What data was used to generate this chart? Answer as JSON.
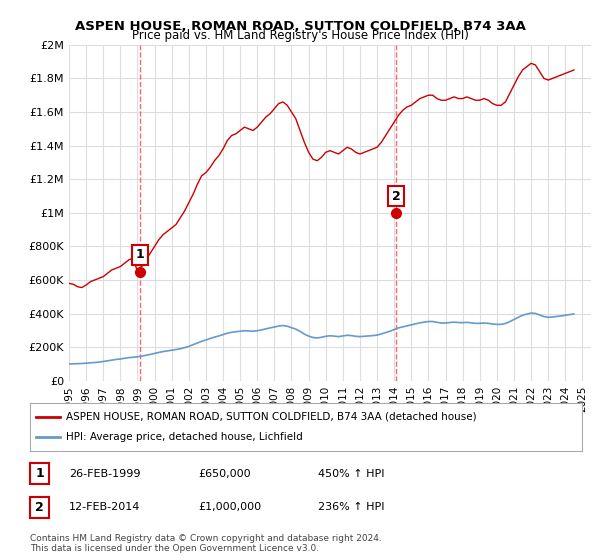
{
  "title": "ASPEN HOUSE, ROMAN ROAD, SUTTON COLDFIELD, B74 3AA",
  "subtitle": "Price paid vs. HM Land Registry's House Price Index (HPI)",
  "ylabel": "",
  "xlim_start": 1995.0,
  "xlim_end": 2025.5,
  "ylim_min": 0,
  "ylim_max": 2000000,
  "yticks": [
    0,
    200000,
    400000,
    600000,
    800000,
    1000000,
    1200000,
    1400000,
    1600000,
    1800000,
    2000000
  ],
  "ytick_labels": [
    "£0",
    "£200K",
    "£400K",
    "£600K",
    "£800K",
    "£1M",
    "£1.2M",
    "£1.4M",
    "£1.6M",
    "£1.8M",
    "£2M"
  ],
  "xticks": [
    1995,
    1996,
    1997,
    1998,
    1999,
    2000,
    2001,
    2002,
    2003,
    2004,
    2005,
    2006,
    2007,
    2008,
    2009,
    2010,
    2011,
    2012,
    2013,
    2014,
    2015,
    2016,
    2017,
    2018,
    2019,
    2020,
    2021,
    2022,
    2023,
    2024,
    2025
  ],
  "sale1_x": 1999.15,
  "sale1_y": 650000,
  "sale1_label": "1",
  "sale2_x": 2014.12,
  "sale2_y": 1000000,
  "sale2_label": "2",
  "vline1_x": 1999.15,
  "vline2_x": 2014.12,
  "house_color": "#cc0000",
  "hpi_color": "#6699cc",
  "vline_color": "#ff6666",
  "grid_color": "#dddddd",
  "bg_color": "#ffffff",
  "legend_box_color": "#000000",
  "legend_line1": "ASPEN HOUSE, ROMAN ROAD, SUTTON COLDFIELD, B74 3AA (detached house)",
  "legend_line2": "HPI: Average price, detached house, Lichfield",
  "table_row1": [
    "1",
    "26-FEB-1999",
    "£650,000",
    "450% ↑ HPI"
  ],
  "table_row2": [
    "2",
    "12-FEB-2014",
    "£1,000,000",
    "236% ↑ HPI"
  ],
  "footnote": "Contains HM Land Registry data © Crown copyright and database right 2024.\nThis data is licensed under the Open Government Licence v3.0.",
  "house_price_data": {
    "x": [
      1995.0,
      1995.25,
      1995.5,
      1995.75,
      1996.0,
      1996.25,
      1996.5,
      1996.75,
      1997.0,
      1997.25,
      1997.5,
      1997.75,
      1998.0,
      1998.25,
      1998.5,
      1998.75,
      1999.0,
      1999.25,
      1999.5,
      1999.75,
      2000.0,
      2000.25,
      2000.5,
      2000.75,
      2001.0,
      2001.25,
      2001.5,
      2001.75,
      2002.0,
      2002.25,
      2002.5,
      2002.75,
      2003.0,
      2003.25,
      2003.5,
      2003.75,
      2004.0,
      2004.25,
      2004.5,
      2004.75,
      2005.0,
      2005.25,
      2005.5,
      2005.75,
      2006.0,
      2006.25,
      2006.5,
      2006.75,
      2007.0,
      2007.25,
      2007.5,
      2007.75,
      2008.0,
      2008.25,
      2008.5,
      2008.75,
      2009.0,
      2009.25,
      2009.5,
      2009.75,
      2010.0,
      2010.25,
      2010.5,
      2010.75,
      2011.0,
      2011.25,
      2011.5,
      2011.75,
      2012.0,
      2012.25,
      2012.5,
      2012.75,
      2013.0,
      2013.25,
      2013.5,
      2013.75,
      2014.0,
      2014.25,
      2014.5,
      2014.75,
      2015.0,
      2015.25,
      2015.5,
      2015.75,
      2016.0,
      2016.25,
      2016.5,
      2016.75,
      2017.0,
      2017.25,
      2017.5,
      2017.75,
      2018.0,
      2018.25,
      2018.5,
      2018.75,
      2019.0,
      2019.25,
      2019.5,
      2019.75,
      2020.0,
      2020.25,
      2020.5,
      2020.75,
      2021.0,
      2021.25,
      2021.5,
      2021.75,
      2022.0,
      2022.25,
      2022.5,
      2022.75,
      2023.0,
      2023.25,
      2023.5,
      2023.75,
      2024.0,
      2024.25,
      2024.5
    ],
    "y": [
      580000,
      575000,
      560000,
      555000,
      570000,
      590000,
      600000,
      610000,
      620000,
      640000,
      660000,
      670000,
      680000,
      700000,
      720000,
      730000,
      650000,
      680000,
      720000,
      760000,
      800000,
      840000,
      870000,
      890000,
      910000,
      930000,
      970000,
      1010000,
      1060000,
      1110000,
      1170000,
      1220000,
      1240000,
      1270000,
      1310000,
      1340000,
      1380000,
      1430000,
      1460000,
      1470000,
      1490000,
      1510000,
      1500000,
      1490000,
      1510000,
      1540000,
      1570000,
      1590000,
      1620000,
      1650000,
      1660000,
      1640000,
      1600000,
      1560000,
      1490000,
      1420000,
      1360000,
      1320000,
      1310000,
      1330000,
      1360000,
      1370000,
      1360000,
      1350000,
      1370000,
      1390000,
      1380000,
      1360000,
      1350000,
      1360000,
      1370000,
      1380000,
      1390000,
      1420000,
      1460000,
      1500000,
      1540000,
      1580000,
      1610000,
      1630000,
      1640000,
      1660000,
      1680000,
      1690000,
      1700000,
      1700000,
      1680000,
      1670000,
      1670000,
      1680000,
      1690000,
      1680000,
      1680000,
      1690000,
      1680000,
      1670000,
      1670000,
      1680000,
      1670000,
      1650000,
      1640000,
      1640000,
      1660000,
      1710000,
      1760000,
      1810000,
      1850000,
      1870000,
      1890000,
      1880000,
      1840000,
      1800000,
      1790000,
      1800000,
      1810000,
      1820000,
      1830000,
      1840000,
      1850000
    ]
  },
  "hpi_data": {
    "x": [
      1995.0,
      1995.25,
      1995.5,
      1995.75,
      1996.0,
      1996.25,
      1996.5,
      1996.75,
      1997.0,
      1997.25,
      1997.5,
      1997.75,
      1998.0,
      1998.25,
      1998.5,
      1998.75,
      1999.0,
      1999.25,
      1999.5,
      1999.75,
      2000.0,
      2000.25,
      2000.5,
      2000.75,
      2001.0,
      2001.25,
      2001.5,
      2001.75,
      2002.0,
      2002.25,
      2002.5,
      2002.75,
      2003.0,
      2003.25,
      2003.5,
      2003.75,
      2004.0,
      2004.25,
      2004.5,
      2004.75,
      2005.0,
      2005.25,
      2005.5,
      2005.75,
      2006.0,
      2006.25,
      2006.5,
      2006.75,
      2007.0,
      2007.25,
      2007.5,
      2007.75,
      2008.0,
      2008.25,
      2008.5,
      2008.75,
      2009.0,
      2009.25,
      2009.5,
      2009.75,
      2010.0,
      2010.25,
      2010.5,
      2010.75,
      2011.0,
      2011.25,
      2011.5,
      2011.75,
      2012.0,
      2012.25,
      2012.5,
      2012.75,
      2013.0,
      2013.25,
      2013.5,
      2013.75,
      2014.0,
      2014.25,
      2014.5,
      2014.75,
      2015.0,
      2015.25,
      2015.5,
      2015.75,
      2016.0,
      2016.25,
      2016.5,
      2016.75,
      2017.0,
      2017.25,
      2017.5,
      2017.75,
      2018.0,
      2018.25,
      2018.5,
      2018.75,
      2019.0,
      2019.25,
      2019.5,
      2019.75,
      2020.0,
      2020.25,
      2020.5,
      2020.75,
      2021.0,
      2021.25,
      2021.5,
      2021.75,
      2022.0,
      2022.25,
      2022.5,
      2022.75,
      2023.0,
      2023.25,
      2023.5,
      2023.75,
      2024.0,
      2024.25,
      2024.5
    ],
    "y": [
      100000,
      101000,
      102000,
      103000,
      105000,
      107000,
      109000,
      111000,
      115000,
      119000,
      123000,
      127000,
      130000,
      134000,
      138000,
      140000,
      143000,
      147000,
      152000,
      157000,
      163000,
      169000,
      174000,
      178000,
      182000,
      186000,
      191000,
      197000,
      205000,
      215000,
      225000,
      235000,
      243000,
      252000,
      260000,
      267000,
      275000,
      283000,
      289000,
      292000,
      295000,
      298000,
      297000,
      295000,
      298000,
      303000,
      309000,
      315000,
      320000,
      326000,
      329000,
      325000,
      316000,
      308000,
      294000,
      278000,
      266000,
      258000,
      255000,
      259000,
      265000,
      268000,
      266000,
      263000,
      267000,
      271000,
      269000,
      265000,
      263000,
      265000,
      267000,
      269000,
      272000,
      279000,
      287000,
      295000,
      305000,
      315000,
      321000,
      327000,
      333000,
      339000,
      345000,
      349000,
      353000,
      353000,
      348000,
      344000,
      344000,
      347000,
      349000,
      347000,
      346000,
      348000,
      345000,
      342000,
      342000,
      344000,
      342000,
      338000,
      336000,
      336000,
      341000,
      352000,
      365000,
      378000,
      390000,
      397000,
      403000,
      401000,
      392000,
      382000,
      378000,
      380000,
      383000,
      386000,
      390000,
      394000,
      398000
    ]
  }
}
